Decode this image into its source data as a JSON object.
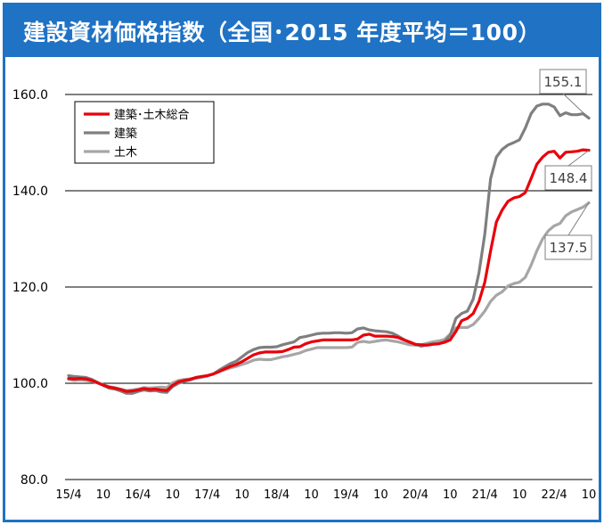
{
  "chart_data": {
    "type": "line",
    "title": "建設資材価格指数（全国･2015 年度平均＝100）",
    "xlabel": "",
    "ylabel": "",
    "ylim": [
      80,
      160
    ],
    "yticks": [
      "80.0",
      "100.0",
      "120.0",
      "140.0",
      "160.0"
    ],
    "y_gridlines": [
      100,
      120,
      140,
      160
    ],
    "x_tick_labels": [
      "15/4",
      "10",
      "16/4",
      "10",
      "17/4",
      "10",
      "18/4",
      "10",
      "19/4",
      "10",
      "20/4",
      "10",
      "21/4",
      "10",
      "22/4",
      "10"
    ],
    "x_start": "2015-04",
    "x_end": "2022-12",
    "legend_position": "top-left",
    "grid": true,
    "series": [
      {
        "name": "建築･土木総合",
        "color": "#e8000b",
        "end_label": "148.4",
        "values": [
          101.0,
          100.9,
          101.0,
          100.9,
          100.6,
          100.1,
          99.6,
          99.2,
          99.0,
          98.7,
          98.3,
          98.4,
          98.6,
          98.9,
          98.7,
          98.8,
          98.6,
          98.5,
          99.6,
          100.3,
          100.6,
          100.8,
          101.2,
          101.4,
          101.6,
          101.9,
          102.4,
          103.0,
          103.5,
          103.9,
          104.5,
          105.2,
          105.9,
          106.3,
          106.5,
          106.5,
          106.5,
          106.6,
          107.0,
          107.5,
          107.6,
          108.2,
          108.6,
          108.8,
          109.0,
          109.0,
          109.0,
          109.0,
          109.0,
          109.0,
          109.2,
          110.0,
          110.2,
          109.8,
          109.8,
          109.8,
          109.7,
          109.5,
          109.0,
          108.6,
          108.1,
          108.0,
          107.9,
          108.1,
          108.2,
          108.5,
          109.0,
          110.8,
          113.0,
          113.5,
          114.5,
          117.0,
          121.0,
          127.5,
          133.5,
          136.0,
          137.8,
          138.5,
          138.8,
          139.6,
          142.5,
          145.5,
          147.0,
          148.0,
          148.2,
          146.8,
          148.0,
          148.1,
          148.2,
          148.5,
          148.4
        ]
      },
      {
        "name": "建築",
        "color": "#7f7f7f",
        "end_label": "155.1",
        "values": [
          101.6,
          101.4,
          101.3,
          101.2,
          100.8,
          100.2,
          99.6,
          99.0,
          98.8,
          98.4,
          97.9,
          97.9,
          98.3,
          98.6,
          98.4,
          98.5,
          98.2,
          98.1,
          99.3,
          100.0,
          100.4,
          100.7,
          101.1,
          101.4,
          101.6,
          101.9,
          102.7,
          103.4,
          104.1,
          104.6,
          105.5,
          106.4,
          107.0,
          107.4,
          107.5,
          107.5,
          107.6,
          108.0,
          108.3,
          108.6,
          109.5,
          109.7,
          110.0,
          110.3,
          110.4,
          110.4,
          110.5,
          110.5,
          110.4,
          110.5,
          111.3,
          111.5,
          111.1,
          110.9,
          110.8,
          110.7,
          110.4,
          109.8,
          109.1,
          108.5,
          108.1,
          107.7,
          108.0,
          108.2,
          108.2,
          108.6,
          110.0,
          113.5,
          114.5,
          115.0,
          117.5,
          123.0,
          131.0,
          142.5,
          147.0,
          148.6,
          149.5,
          150.0,
          150.6,
          153.0,
          156.0,
          157.6,
          158.0,
          158.0,
          157.4,
          155.6,
          156.2,
          155.8,
          155.8,
          156.0,
          155.1
        ]
      },
      {
        "name": "土木",
        "color": "#a6a6a6",
        "end_label": "137.5",
        "values": [
          100.8,
          100.6,
          100.7,
          100.6,
          100.4,
          100.1,
          99.7,
          99.3,
          99.1,
          98.8,
          98.5,
          98.6,
          98.8,
          99.1,
          99.0,
          99.1,
          99.2,
          99.1,
          100.1,
          100.6,
          100.8,
          100.9,
          101.1,
          101.2,
          101.5,
          101.9,
          102.4,
          102.8,
          103.2,
          103.5,
          103.9,
          104.3,
          104.8,
          105.0,
          104.9,
          104.9,
          105.2,
          105.5,
          105.7,
          106.0,
          106.3,
          106.8,
          107.1,
          107.4,
          107.4,
          107.4,
          107.4,
          107.4,
          107.4,
          107.5,
          108.5,
          108.7,
          108.5,
          108.7,
          108.9,
          109.0,
          108.8,
          108.6,
          108.3,
          108.0,
          107.9,
          108.0,
          108.3,
          108.6,
          108.8,
          109.1,
          110.2,
          111.5,
          111.6,
          111.6,
          112.2,
          113.5,
          115.0,
          117.0,
          118.3,
          119.0,
          120.2,
          120.7,
          121.0,
          122.0,
          124.5,
          127.5,
          130.0,
          131.7,
          132.7,
          133.2,
          134.8,
          135.6,
          136.1,
          136.6,
          137.5
        ]
      }
    ]
  }
}
